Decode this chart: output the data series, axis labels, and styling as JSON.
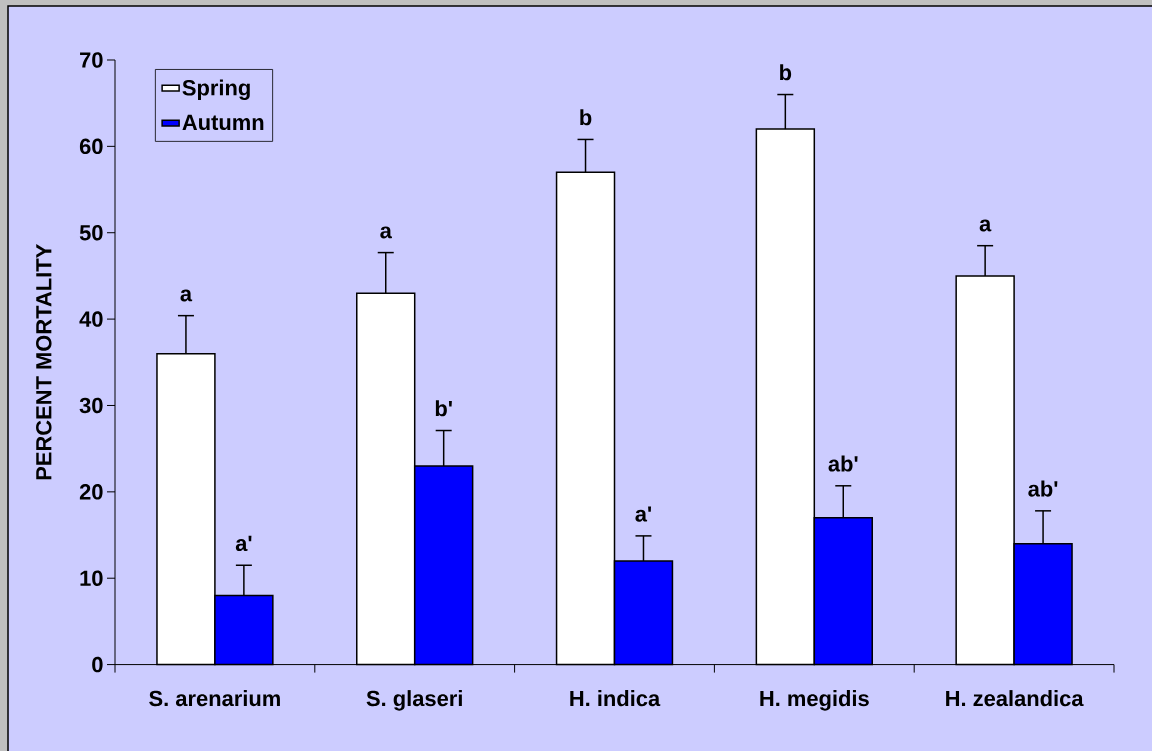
{
  "chart_data": {
    "type": "bar",
    "ylabel": "PERCENT MORTALITY",
    "categories": [
      "S. arenarium",
      "S. glaseri",
      "H. indica",
      "H. megidis",
      "H. zealandica"
    ],
    "series": [
      {
        "name": "Spring",
        "color": "#ffffff",
        "values": [
          36,
          43,
          57,
          62,
          45
        ],
        "errors": [
          4.4,
          4.7,
          3.8,
          4,
          3.5
        ],
        "value_labels": [
          "a",
          "a",
          "b",
          "b",
          "a"
        ]
      },
      {
        "name": "Autumn",
        "color": "#0000ff",
        "values": [
          8,
          23,
          12,
          17,
          14
        ],
        "errors": [
          3.5,
          4.1,
          2.9,
          3.7,
          3.8
        ],
        "value_labels": [
          "a'",
          "b'",
          "a'",
          "ab'",
          "ab'"
        ]
      }
    ],
    "ylim": [
      0,
      70
    ],
    "yticks": [
      0,
      10,
      20,
      30,
      40,
      50,
      60,
      70
    ],
    "legend": "top left"
  }
}
